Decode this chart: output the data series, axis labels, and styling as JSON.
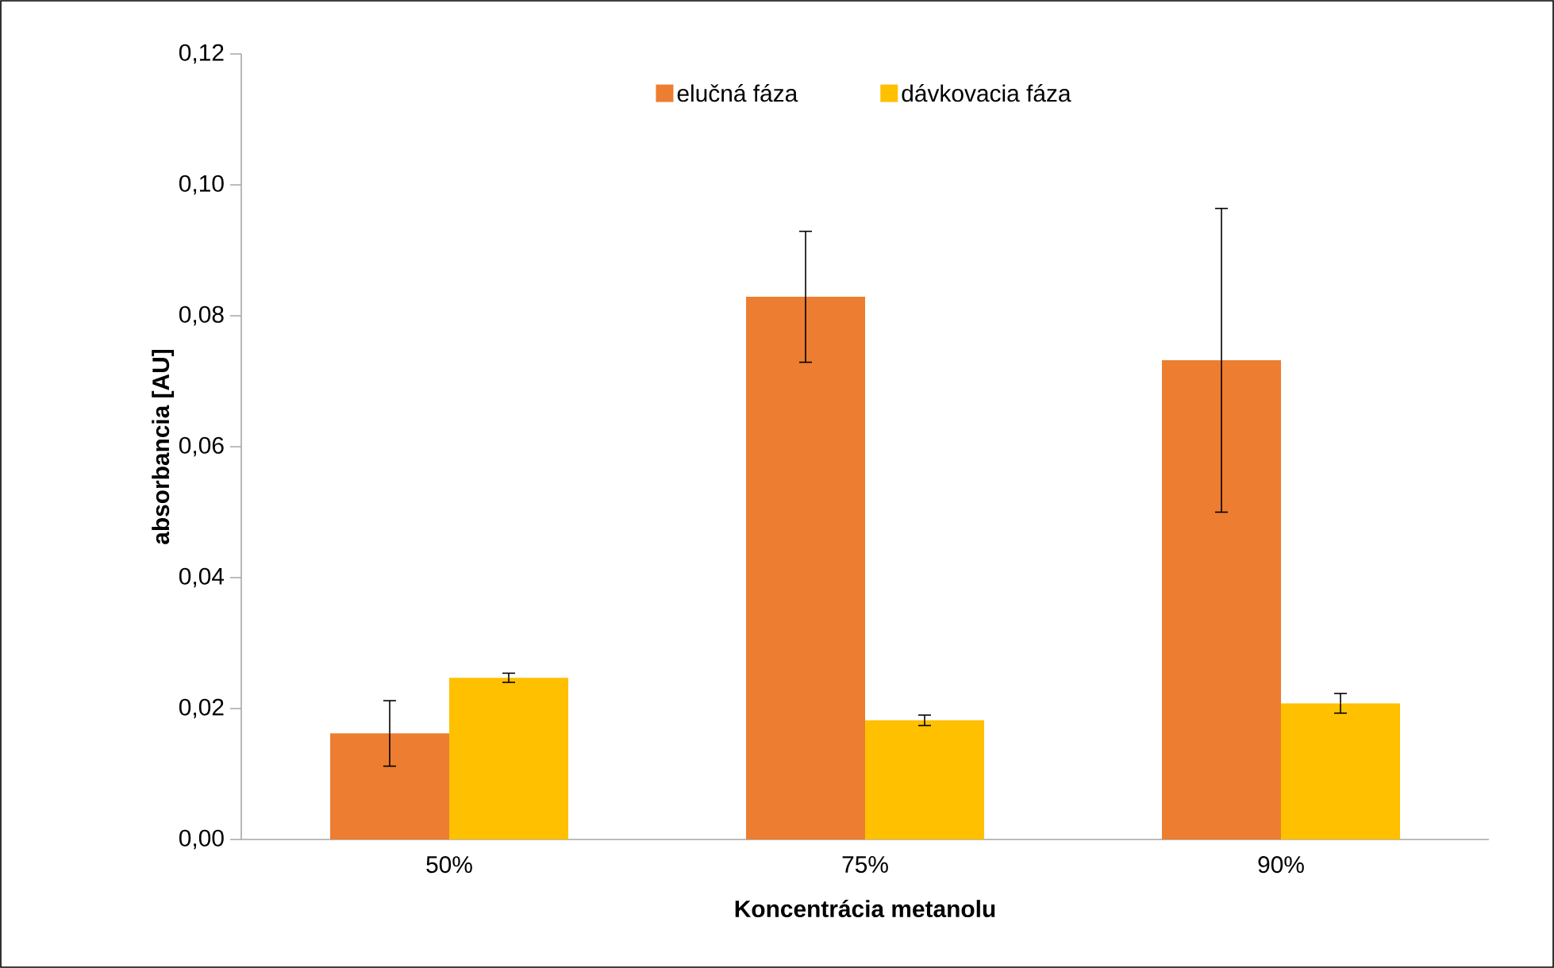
{
  "chart_data": {
    "type": "bar",
    "xlabel": "Koncentrácia metanolu",
    "ylabel": "absorbancia [AU]",
    "categories": [
      "50%",
      "75%",
      "90%"
    ],
    "series": [
      {
        "name": "elučná fáza",
        "color": "#ed7d31",
        "values": [
          0.0162,
          0.0829,
          0.0732
        ],
        "errors": [
          0.005,
          0.01,
          0.0232
        ]
      },
      {
        "name": "dávkovacia fáza",
        "color": "#ffc000",
        "values": [
          0.0247,
          0.0182,
          0.0208
        ],
        "errors": [
          0.0007,
          0.0008,
          0.0015
        ]
      }
    ],
    "ylim": [
      0,
      0.12
    ],
    "yticks": [
      {
        "value": 0,
        "label": "0,00"
      },
      {
        "value": 0.02,
        "label": "0,02"
      },
      {
        "value": 0.04,
        "label": "0,04"
      },
      {
        "value": 0.06,
        "label": "0,06"
      },
      {
        "value": 0.08,
        "label": "0,08"
      },
      {
        "value": 0.1,
        "label": "0,10"
      },
      {
        "value": 0.12,
        "label": "0,12"
      }
    ],
    "legend": "top",
    "grid": false
  }
}
